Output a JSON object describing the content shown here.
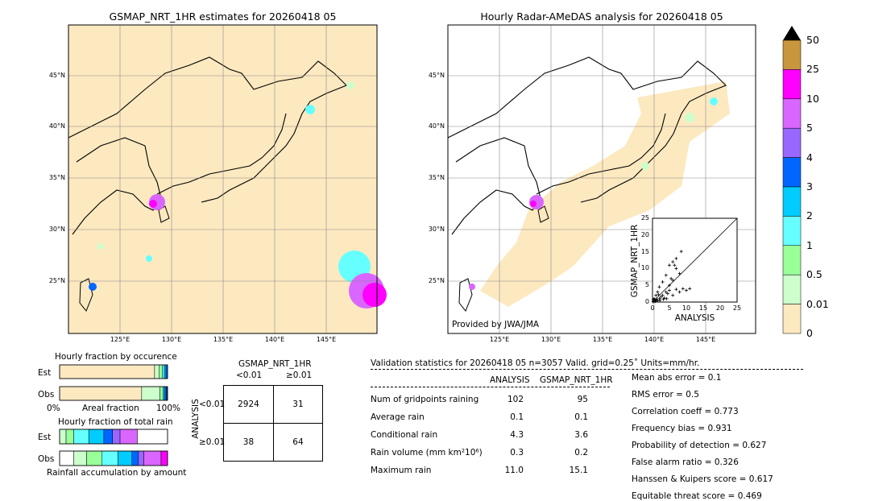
{
  "left_map": {
    "title": "GSMAP_NRT_1HR estimates for 20260418 05",
    "lat_labels": [
      "45°N",
      "40°N",
      "35°N",
      "30°N",
      "25°N"
    ],
    "lon_labels": [
      "125°E",
      "130°E",
      "135°E",
      "140°E",
      "145°E"
    ]
  },
  "right_map": {
    "title": "Hourly Radar-AMeDAS analysis for 20260418 05",
    "lat_labels": [
      "45°N",
      "40°N",
      "35°N",
      "30°N",
      "25°N"
    ],
    "lon_labels": [
      "125°E",
      "130°E",
      "135°E",
      "140°E",
      "145°E"
    ],
    "provided_by": "Provided by JWA/JMA"
  },
  "colorbar": {
    "labels": [
      "50",
      "25",
      "10",
      "5",
      "4",
      "3",
      "2",
      "1",
      "0.5",
      "0.01",
      "0"
    ],
    "colors": [
      "#c8963c",
      "#ff00ff",
      "#d966ff",
      "#9966ff",
      "#0066ff",
      "#00ccff",
      "#66ffff",
      "#99ff99",
      "#ccffcc",
      "#fde9c0"
    ]
  },
  "scatter": {
    "xlabel": "ANALYSIS",
    "ylabel": "GSMAP_NRT_1HR",
    "ticks": [
      "0",
      "5",
      "10",
      "15",
      "20",
      "25"
    ]
  },
  "chart_data": {
    "type": "scatter",
    "xlabel": "ANALYSIS",
    "ylabel": "GSMAP_NRT_1HR",
    "xlim": [
      0,
      25
    ],
    "ylim": [
      0,
      25
    ],
    "points": [
      [
        0.2,
        0.1
      ],
      [
        0.5,
        0.3
      ],
      [
        0.8,
        0.2
      ],
      [
        1.0,
        0.6
      ],
      [
        1.2,
        0.9
      ],
      [
        1.5,
        0.4
      ],
      [
        2.0,
        1.0
      ],
      [
        2.5,
        1.5
      ],
      [
        3.0,
        2.0
      ],
      [
        3.5,
        1.2
      ],
      [
        4.0,
        3.0
      ],
      [
        4.5,
        2.5
      ],
      [
        5.0,
        3.5
      ],
      [
        6.0,
        2.0
      ],
      [
        7.0,
        3.8
      ],
      [
        8.0,
        3.0
      ],
      [
        5.0,
        5.0
      ],
      [
        6.0,
        6.5
      ],
      [
        4.0,
        8.0
      ],
      [
        3.0,
        6.0
      ],
      [
        5.5,
        7.0
      ],
      [
        7.0,
        10.0
      ],
      [
        6.5,
        11.0
      ],
      [
        8.0,
        8.5
      ],
      [
        5.0,
        11.0
      ],
      [
        6.0,
        12.0
      ],
      [
        7.0,
        13.0
      ],
      [
        8.5,
        15.1
      ],
      [
        9.0,
        4.0
      ],
      [
        10.0,
        3.5
      ],
      [
        11.0,
        4.0
      ],
      [
        2.0,
        4.5
      ],
      [
        1.5,
        3.0
      ],
      [
        1.0,
        2.0
      ],
      [
        0.5,
        1.0
      ],
      [
        0.3,
        0.8
      ],
      [
        2.2,
        0.5
      ],
      [
        3.2,
        0.8
      ],
      [
        4.2,
        1.0
      ],
      [
        1.8,
        2.2
      ]
    ]
  },
  "occurrence": {
    "title": "Hourly fraction by occurence",
    "row_labels": [
      "Est",
      "Obs"
    ],
    "axis_left": "0%",
    "axis_mid": "Areal fraction",
    "axis_right": "100%",
    "est_segments": [
      {
        "frac": 0.88,
        "color": "#fde9c0"
      },
      {
        "frac": 0.04,
        "color": "#ccffcc"
      },
      {
        "frac": 0.03,
        "color": "#99ff99"
      },
      {
        "frac": 0.02,
        "color": "#66ffff"
      },
      {
        "frac": 0.015,
        "color": "#00ccff"
      },
      {
        "frac": 0.015,
        "color": "#0066ff"
      }
    ],
    "obs_segments": [
      {
        "frac": 0.76,
        "color": "#fde9c0"
      },
      {
        "frac": 0.17,
        "color": "#ccffcc"
      },
      {
        "frac": 0.03,
        "color": "#99ff99"
      },
      {
        "frac": 0.015,
        "color": "#00ccff"
      },
      {
        "frac": 0.015,
        "color": "#0066ff"
      },
      {
        "frac": 0.01,
        "color": "#003399"
      }
    ]
  },
  "amount": {
    "title": "Hourly fraction of total rain",
    "row_labels": [
      "Est",
      "Obs"
    ],
    "footer": "Rainfall accumulation by amount",
    "est_segments": [
      {
        "frac": 0.06,
        "color": "#ccffcc"
      },
      {
        "frac": 0.07,
        "color": "#99ff99"
      },
      {
        "frac": 0.14,
        "color": "#66ffff"
      },
      {
        "frac": 0.14,
        "color": "#00ccff"
      },
      {
        "frac": 0.08,
        "color": "#0066ff"
      },
      {
        "frac": 0.07,
        "color": "#9966ff"
      },
      {
        "frac": 0.16,
        "color": "#d966ff"
      },
      {
        "frac": 0.28,
        "color": "#ffffff"
      }
    ],
    "obs_segments": [
      {
        "frac": 0.13,
        "color": "#ffffff"
      },
      {
        "frac": 0.12,
        "color": "#ccffcc"
      },
      {
        "frac": 0.14,
        "color": "#99ff99"
      },
      {
        "frac": 0.15,
        "color": "#66ffff"
      },
      {
        "frac": 0.13,
        "color": "#00ccff"
      },
      {
        "frac": 0.06,
        "color": "#0066ff"
      },
      {
        "frac": 0.05,
        "color": "#9966ff"
      },
      {
        "frac": 0.16,
        "color": "#d966ff"
      },
      {
        "frac": 0.06,
        "color": "#ff00ff"
      }
    ]
  },
  "contingency": {
    "header": "GSMAP_NRT_1HR",
    "col_labels": [
      "<0.01",
      "≥0.01"
    ],
    "row_axis": "ANALYSIS",
    "row_labels": [
      "<0.01",
      "≥0.01"
    ],
    "cells": [
      [
        "2924",
        "31"
      ],
      [
        "38",
        "64"
      ]
    ]
  },
  "validation": {
    "header": "Validation statistics for 20260418 05  n=3057 Valid. grid=0.25˚ Units=mm/hr.",
    "col_analysis": "ANALYSIS",
    "col_gsmap": "GSMAP_NRT_1HR",
    "rows": [
      {
        "label": "Num of gridpoints raining",
        "a": "102",
        "g": "95"
      },
      {
        "label": "Average rain",
        "a": "0.1",
        "g": "0.1"
      },
      {
        "label": "Conditional rain",
        "a": "4.3",
        "g": "3.6"
      },
      {
        "label": "Rain volume (mm km²10⁶)",
        "a": "0.3",
        "g": "0.2"
      },
      {
        "label": "Maximum rain",
        "a": "11.0",
        "g": "15.1"
      }
    ],
    "scores": [
      "Mean abs error =    0.1",
      "RMS error =    0.5",
      "Correlation coeff =  0.773",
      "Frequency bias =  0.931",
      "Probability of detection =  0.627",
      "False alarm ratio =  0.326",
      "Hanssen & Kuipers score =  0.617",
      "Equitable threat score =  0.469"
    ]
  }
}
